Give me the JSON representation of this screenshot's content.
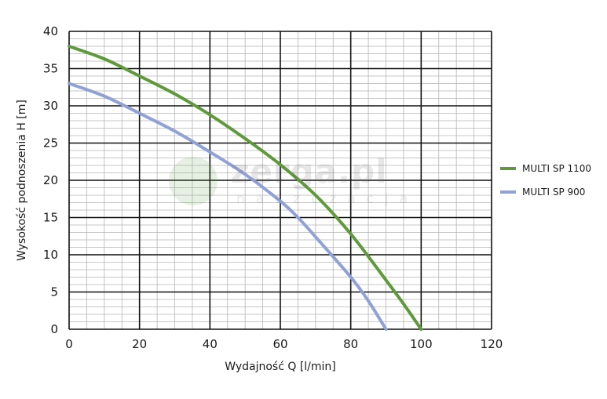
{
  "watermark": {
    "main": "zerga.pl",
    "sub": "naszczacja"
  },
  "chart_data": {
    "type": "line",
    "title": "",
    "xlabel": "Wydajność Q [l/min]",
    "ylabel": "Wysokość podnoszenia H [m]",
    "xlim": [
      0,
      120
    ],
    "ylim": [
      0,
      40
    ],
    "xticks": [
      0,
      20,
      40,
      60,
      80,
      100,
      120
    ],
    "yticks": [
      0,
      5,
      10,
      15,
      20,
      25,
      30,
      35,
      40
    ],
    "grid": true,
    "legend_position": "right",
    "series": [
      {
        "name": "MULTI SP 1100",
        "color": "#5e9a3a",
        "x": [
          0,
          10,
          20,
          30,
          40,
          50,
          60,
          70,
          80,
          90,
          95,
          100
        ],
        "y": [
          38,
          36.3,
          34,
          31.6,
          28.8,
          25.6,
          22.1,
          18,
          12.8,
          6.6,
          3.4,
          0
        ]
      },
      {
        "name": "MULTI SP 900",
        "color": "#8fa1d6",
        "x": [
          0,
          10,
          20,
          30,
          40,
          50,
          60,
          65,
          70,
          80,
          85,
          90
        ],
        "y": [
          33,
          31.3,
          29,
          26.6,
          23.8,
          20.8,
          17.2,
          15,
          12.4,
          7,
          3.8,
          0
        ]
      }
    ]
  }
}
